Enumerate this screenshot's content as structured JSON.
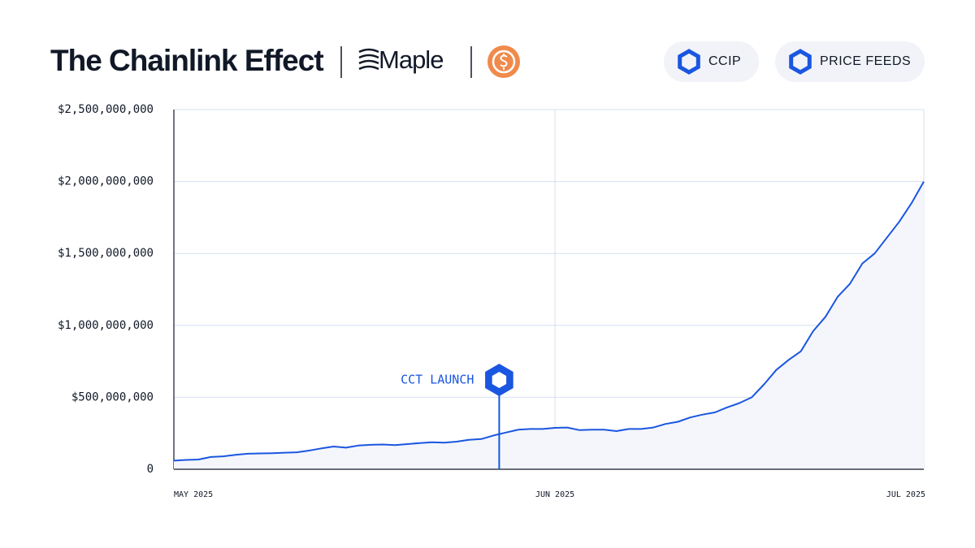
{
  "chart_data": {
    "type": "area",
    "title": "The Chainlink Effect",
    "brand": "Maple",
    "legend": [
      "CCIP",
      "PRICE FEEDS"
    ],
    "categories": [
      "MAY 2025",
      null,
      null,
      null,
      null,
      null,
      null,
      null,
      null,
      null,
      null,
      null,
      null,
      null,
      null,
      null,
      null,
      null,
      null,
      null,
      null,
      null,
      null,
      null,
      null,
      null,
      null,
      null,
      null,
      null,
      null,
      "JUN 2025",
      null,
      null,
      null,
      null,
      null,
      null,
      null,
      null,
      null,
      null,
      null,
      null,
      null,
      null,
      null,
      null,
      null,
      null,
      null,
      null,
      null,
      null,
      null,
      null,
      null,
      null,
      null,
      null,
      null,
      "JUL 2025"
    ],
    "series": [
      {
        "name": "Maple",
        "color": "#1a56e0",
        "values": [
          60000000,
          65000000,
          68000000,
          85000000,
          90000000,
          100000000,
          108000000,
          110000000,
          112000000,
          115000000,
          118000000,
          130000000,
          145000000,
          158000000,
          150000000,
          165000000,
          170000000,
          172000000,
          168000000,
          175000000,
          182000000,
          188000000,
          185000000,
          192000000,
          205000000,
          210000000,
          235000000,
          255000000,
          275000000,
          280000000,
          280000000,
          288000000,
          290000000,
          272000000,
          275000000,
          275000000,
          265000000,
          280000000,
          280000000,
          290000000,
          315000000,
          330000000,
          360000000,
          380000000,
          395000000,
          430000000,
          460000000,
          500000000,
          590000000,
          690000000,
          760000000,
          820000000,
          960000000,
          1060000000,
          1200000000,
          1290000000,
          1430000000,
          1500000000,
          1610000000,
          1720000000,
          1850000000,
          2000000000
        ]
      }
    ],
    "annotations": [
      {
        "text": "CCT LAUNCH",
        "at": 26
      }
    ],
    "ylim": [
      0,
      2500000000
    ],
    "yticks": [
      0,
      {
        "value": 500000000,
        "label": "$500,000,000"
      },
      {
        "value": 1000000000,
        "label": "$1,000,000,000"
      },
      {
        "value": 1500000000,
        "label": "$1,500,000,000"
      },
      {
        "value": 2000000000,
        "label": "$2,000,000,000"
      },
      {
        "value": 2500000000,
        "label": "$2,500,000,000"
      }
    ],
    "grid": true
  }
}
